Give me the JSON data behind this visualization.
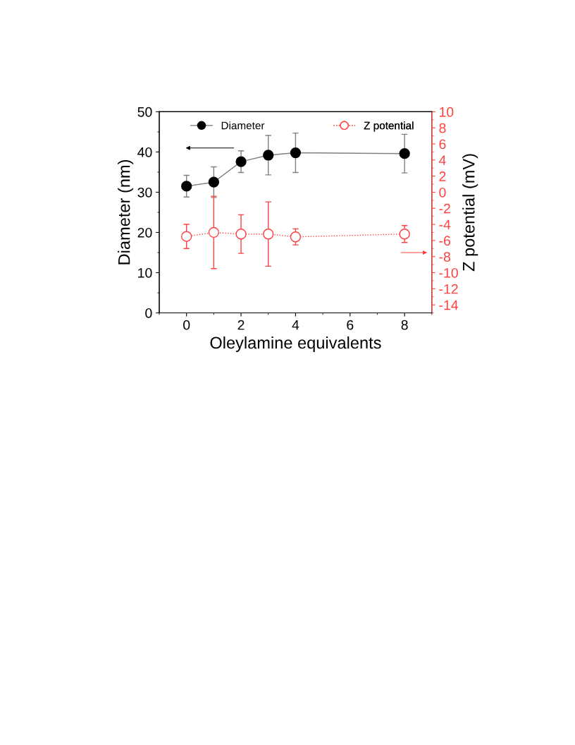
{
  "chart_data": {
    "type": "line",
    "xlabel": "Oleylamine equivalents",
    "ylabel": "Diameter (nm)",
    "y2label": "Z potential (mV)",
    "x": [
      0,
      1,
      2,
      3,
      4,
      8
    ],
    "series": [
      {
        "name": "Diameter",
        "color": "#000000",
        "values": [
          31.5,
          32.5,
          37.6,
          39.2,
          39.8,
          39.6
        ],
        "errors": [
          2.7,
          3.8,
          2.7,
          4.9,
          4.9,
          4.8
        ],
        "marker": "circle",
        "line_style": "solid"
      },
      {
        "name": "Z potential",
        "color": "#ff4040",
        "axis": "y2",
        "values": [
          -5.5,
          -5.0,
          -5.2,
          -5.2,
          -5.55,
          -5.2
        ],
        "errors": [
          1.5,
          4.5,
          2.4,
          4.0,
          1.0,
          1.05
        ],
        "marker": "circle",
        "line_style": "dotted"
      }
    ],
    "xlim": [
      -1,
      9
    ],
    "xticks": [
      0,
      2,
      4,
      6,
      8
    ],
    "ylim": [
      0,
      50
    ],
    "yticks": [
      0,
      10,
      20,
      30,
      40,
      50
    ],
    "y2lim": [
      -15,
      10
    ],
    "y2ticks": [
      -14,
      -12,
      -10,
      -8,
      -6,
      -4,
      -2,
      0,
      2,
      4,
      6,
      8,
      10
    ],
    "grid": false,
    "legend": "top"
  }
}
